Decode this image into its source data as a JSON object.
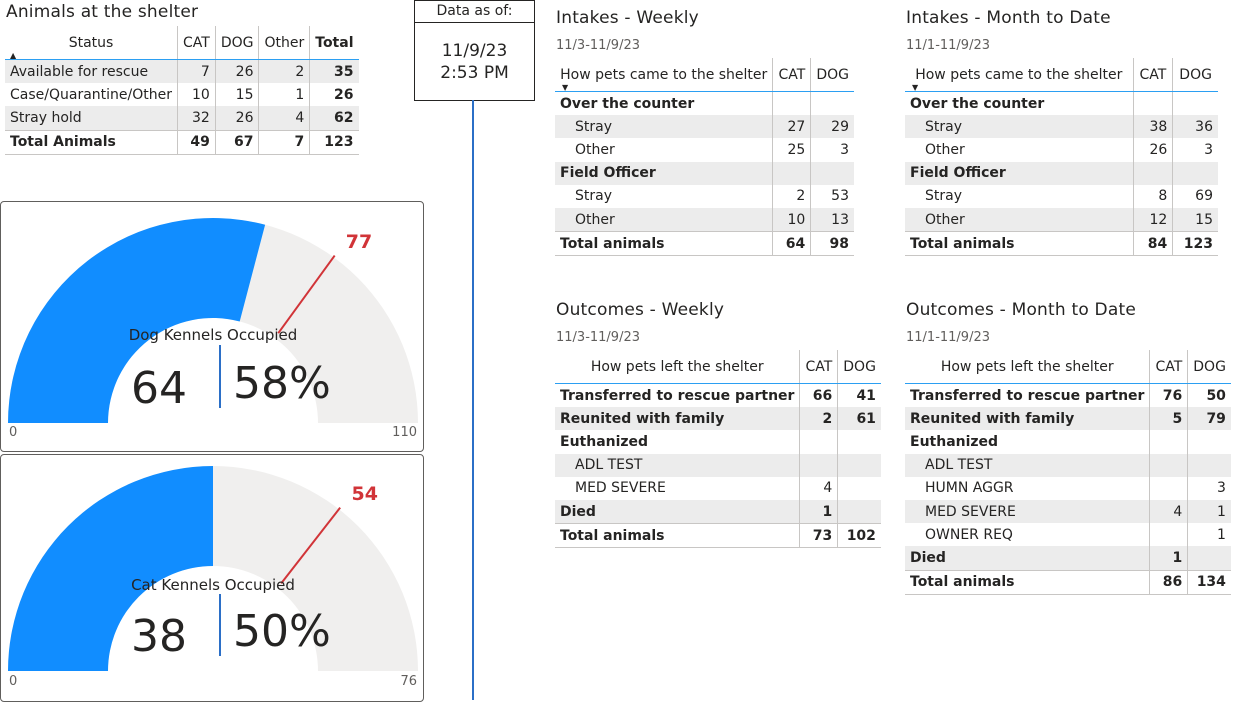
{
  "shelter": {
    "title": "Animals at the shelter",
    "columns": [
      "Status",
      "CAT",
      "DOG",
      "Other",
      "Total"
    ],
    "rows": [
      {
        "label": "Available for rescue",
        "cat": "7",
        "dog": "26",
        "other": "2",
        "total": "35"
      },
      {
        "label": "Case/Quarantine/Other",
        "cat": "10",
        "dog": "15",
        "other": "1",
        "total": "26"
      },
      {
        "label": "Stray hold",
        "cat": "32",
        "dog": "26",
        "other": "4",
        "total": "62"
      }
    ],
    "total_row": {
      "label": "Total Animals",
      "cat": "49",
      "dog": "67",
      "other": "7",
      "total": "123"
    }
  },
  "dog_gauge": {
    "label": "Dog Kennels Occupied",
    "value": "64",
    "percent": "58%",
    "min": "0",
    "max": "110",
    "target": "77",
    "value_num": 64,
    "max_num": 110,
    "target_num": 77
  },
  "cat_gauge": {
    "label": "Cat Kennels Occupied",
    "value": "38",
    "percent": "50%",
    "min": "0",
    "max": "76",
    "target": "54",
    "value_num": 38,
    "max_num": 76,
    "target_num": 54
  },
  "asof": {
    "label": "Data as of:",
    "date": "11/9/23",
    "time": "2:53 PM"
  },
  "intakes_weekly": {
    "title": "Intakes - Weekly",
    "range": "11/3-11/9/23",
    "header": "How pets came to the shelter",
    "col_cat": "CAT",
    "col_dog": "DOG",
    "groups": [
      {
        "name": "Over the counter",
        "items": [
          {
            "label": "Stray",
            "cat": "27",
            "dog": "29"
          },
          {
            "label": "Other",
            "cat": "25",
            "dog": "3"
          }
        ]
      },
      {
        "name": "Field Officer",
        "items": [
          {
            "label": "Stray",
            "cat": "2",
            "dog": "53"
          },
          {
            "label": "Other",
            "cat": "10",
            "dog": "13"
          }
        ]
      }
    ],
    "total": {
      "label": "Total animals",
      "cat": "64",
      "dog": "98"
    }
  },
  "intakes_mtd": {
    "title": "Intakes - Month to Date",
    "range": "11/1-11/9/23",
    "header": "How pets came to the shelter",
    "col_cat": "CAT",
    "col_dog": "DOG",
    "groups": [
      {
        "name": "Over the counter",
        "items": [
          {
            "label": "Stray",
            "cat": "38",
            "dog": "36"
          },
          {
            "label": "Other",
            "cat": "26",
            "dog": "3"
          }
        ]
      },
      {
        "name": "Field Officer",
        "items": [
          {
            "label": "Stray",
            "cat": "8",
            "dog": "69"
          },
          {
            "label": "Other",
            "cat": "12",
            "dog": "15"
          }
        ]
      }
    ],
    "total": {
      "label": "Total animals",
      "cat": "84",
      "dog": "123"
    }
  },
  "outcomes_weekly": {
    "title": "Outcomes - Weekly",
    "range": "11/3-11/9/23",
    "header": "How pets left the shelter",
    "col_cat": "CAT",
    "col_dog": "DOG",
    "rows": [
      {
        "label": "Transferred to rescue partner",
        "cat": "66",
        "dog": "41",
        "level": 0
      },
      {
        "label": "Reunited with family",
        "cat": "2",
        "dog": "61",
        "level": 0
      },
      {
        "label": "Euthanized",
        "cat": "",
        "dog": "",
        "level": 0
      },
      {
        "label": "ADL TEST",
        "cat": "",
        "dog": "",
        "level": 1
      },
      {
        "label": "MED SEVERE",
        "cat": "4",
        "dog": "",
        "level": 1
      },
      {
        "label": "Died",
        "cat": "1",
        "dog": "",
        "level": 0
      }
    ],
    "total": {
      "label": "Total animals",
      "cat": "73",
      "dog": "102"
    }
  },
  "outcomes_mtd": {
    "title": "Outcomes - Month to Date",
    "range": "11/1-11/9/23",
    "header": "How pets left the shelter",
    "col_cat": "CAT",
    "col_dog": "DOG",
    "rows": [
      {
        "label": "Transferred to rescue partner",
        "cat": "76",
        "dog": "50",
        "level": 0
      },
      {
        "label": "Reunited with family",
        "cat": "5",
        "dog": "79",
        "level": 0
      },
      {
        "label": "Euthanized",
        "cat": "",
        "dog": "",
        "level": 0
      },
      {
        "label": "ADL TEST",
        "cat": "",
        "dog": "",
        "level": 1
      },
      {
        "label": "HUMN AGGR",
        "cat": "",
        "dog": "3",
        "level": 1
      },
      {
        "label": "MED SEVERE",
        "cat": "4",
        "dog": "1",
        "level": 1
      },
      {
        "label": "OWNER REQ",
        "cat": "",
        "dog": "1",
        "level": 1
      },
      {
        "label": "Died",
        "cat": "1",
        "dog": "",
        "level": 0
      }
    ],
    "total": {
      "label": "Total animals",
      "cat": "86",
      "dog": "134"
    }
  },
  "colors": {
    "gauge_fill": "#118dff",
    "gauge_track": "#f0efee",
    "target": "#d13438",
    "separator": "#2b6fc7",
    "header_rule": "#2b9ff2"
  }
}
